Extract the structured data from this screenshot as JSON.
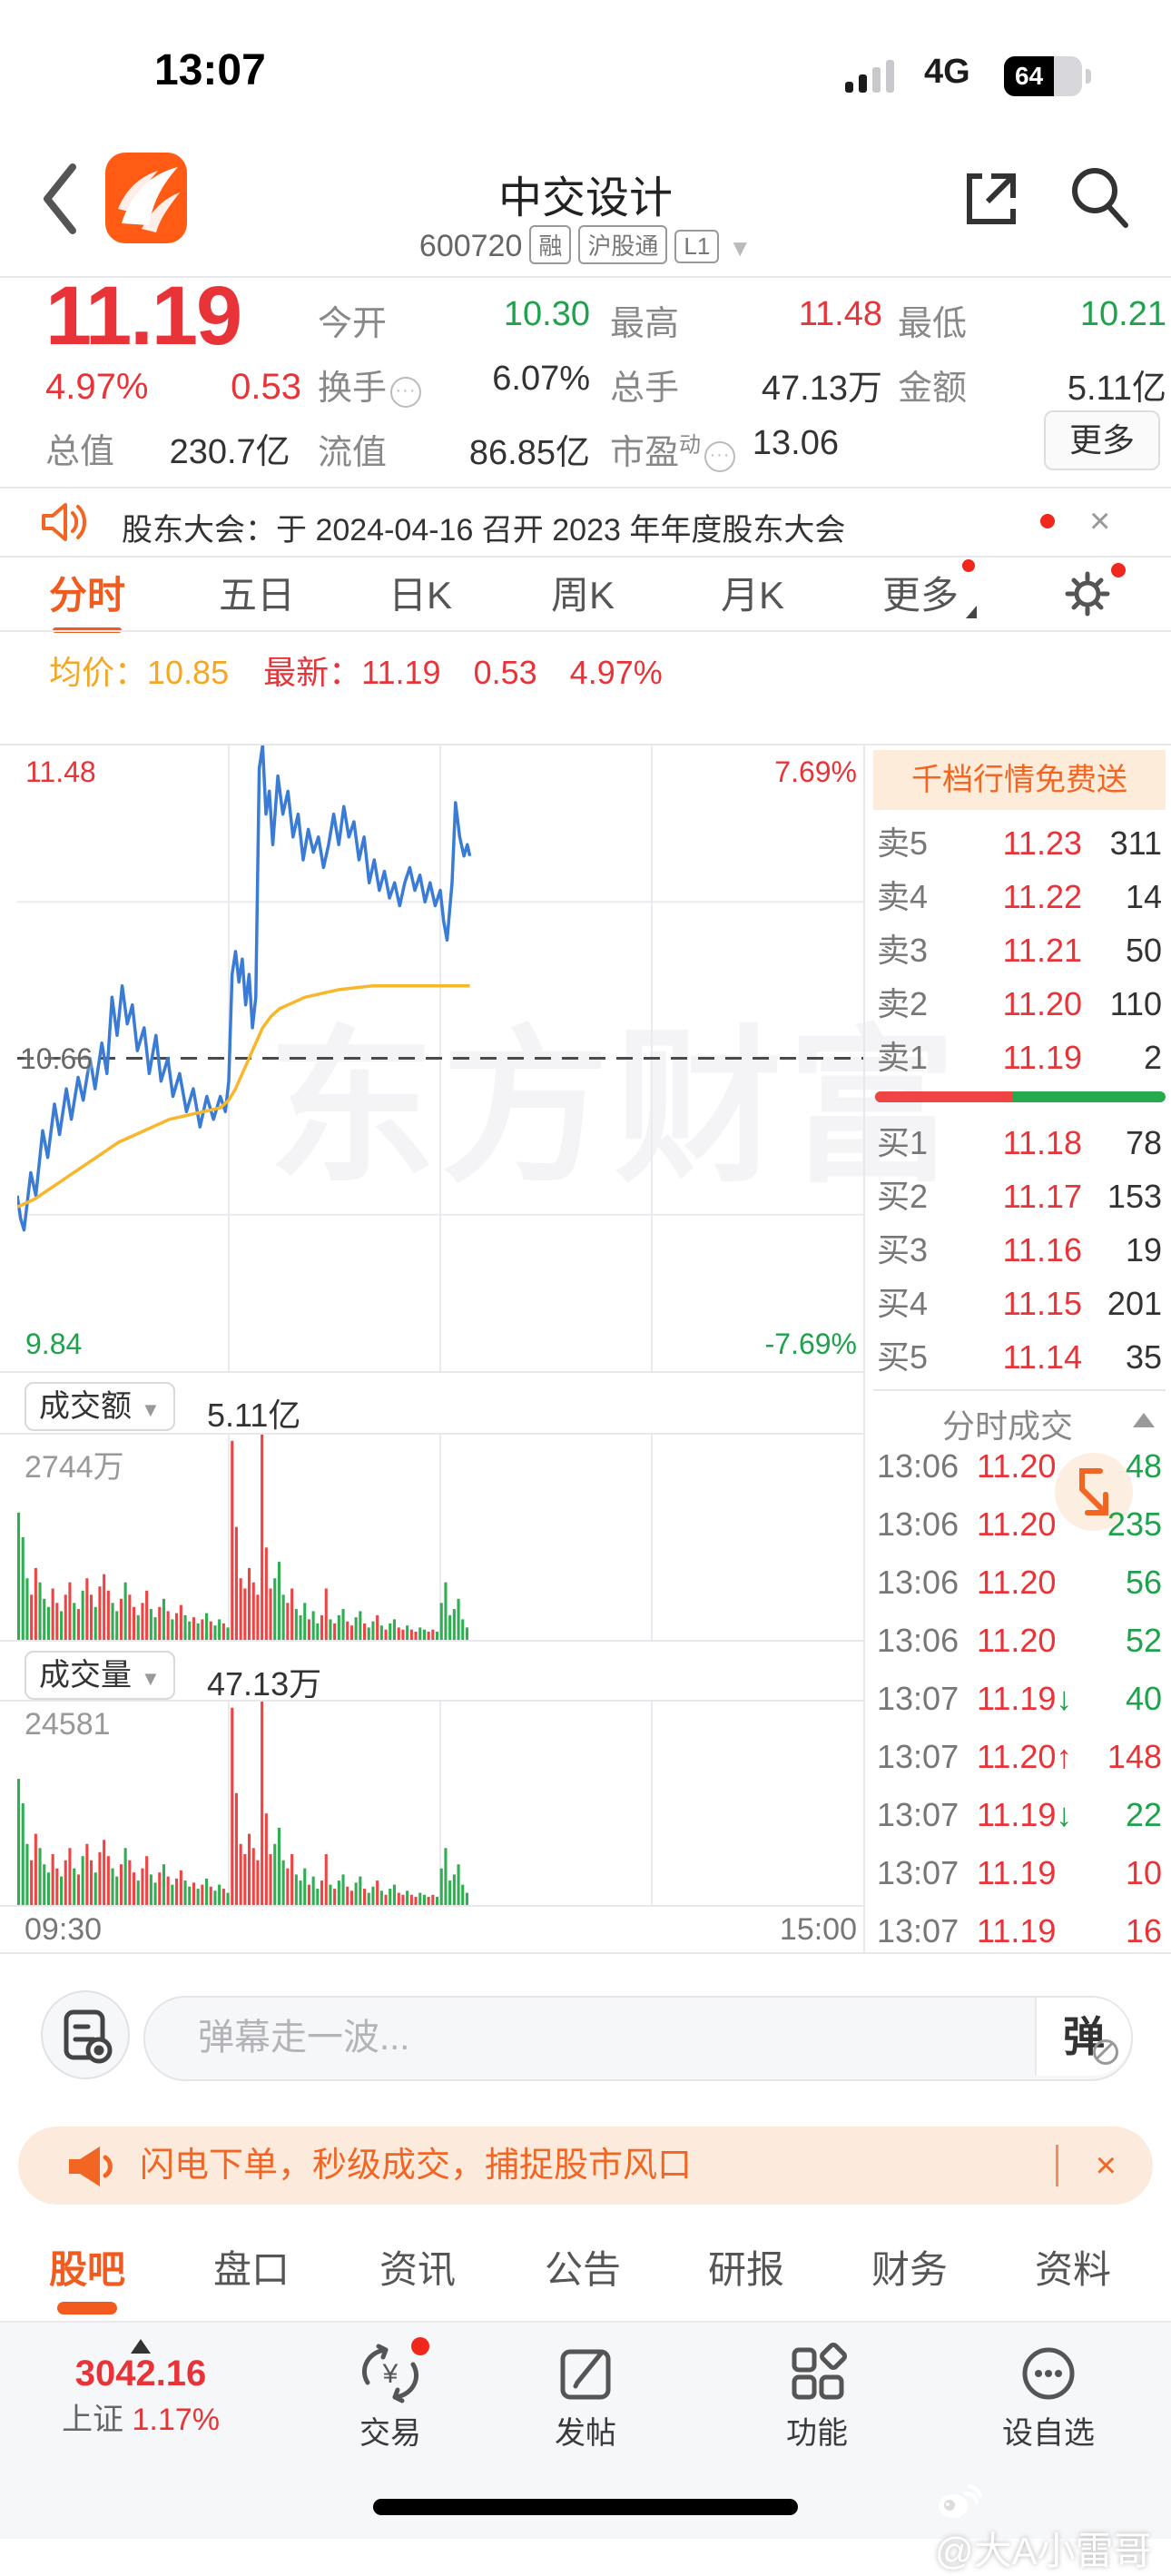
{
  "status_bar": {
    "time": "13:07",
    "network": "4G",
    "battery": "64"
  },
  "header": {
    "title": "中交设计",
    "code": "600720",
    "badges": [
      "融",
      "沪股通",
      "L1"
    ]
  },
  "quote": {
    "price": "11.19",
    "pct": "4.97%",
    "chg": "0.53",
    "cap_label": "总值",
    "cap_value": "230.7亿",
    "r1": [
      {
        "label": "今开",
        "value": "10.30"
      },
      {
        "label": "最高",
        "value": "11.48"
      },
      {
        "label": "最低",
        "value": "10.21"
      }
    ],
    "r2": [
      {
        "label": "换手",
        "value": "6.07%"
      },
      {
        "label": "总手",
        "value": "47.13万"
      },
      {
        "label": "金额",
        "value": "5.11亿"
      }
    ],
    "r3": [
      {
        "label": "流值",
        "value": "86.85亿"
      },
      {
        "label": "市盈",
        "sup": "动",
        "value": "13.06"
      }
    ],
    "more_label": "更多"
  },
  "announcement": {
    "text": "股东大会：于 2024-04-16 召开 2023 年年度股东大会",
    "close": "×"
  },
  "period_tabs": {
    "items": [
      {
        "label": "分时",
        "active": true
      },
      {
        "label": "五日"
      },
      {
        "label": "日K"
      },
      {
        "label": "周K"
      },
      {
        "label": "月K"
      },
      {
        "label": "更多",
        "dot": true,
        "caret": true
      }
    ]
  },
  "chart_header": {
    "avg_label": "均价：",
    "avg": "10.85",
    "latest_label": "最新：",
    "latest": "11.19",
    "chg": "0.53",
    "pct": "4.97%"
  },
  "chart_data": {
    "type": "line",
    "title": "intraday minute chart",
    "ylim": [
      9.84,
      11.48
    ],
    "prev_close": 10.66,
    "labels": {
      "high": "11.48",
      "low": "9.84",
      "prev_close": "10.66",
      "pct_high": "7.69%",
      "pct_low": "-7.69%"
    },
    "x_axis": {
      "start": "09:30",
      "end": "15:00"
    },
    "grid": {
      "v_pct": [
        25,
        50,
        75
      ],
      "h_pct": [
        25,
        75
      ],
      "dashed_pct": 50
    },
    "series": [
      {
        "name": "price",
        "color": "#3a7bd5",
        "points": [
          [
            0,
            10.3
          ],
          [
            0.4,
            10.24
          ],
          [
            0.8,
            10.21
          ],
          [
            1.6,
            10.36
          ],
          [
            2.2,
            10.3
          ],
          [
            3,
            10.47
          ],
          [
            3.6,
            10.4
          ],
          [
            4.4,
            10.54
          ],
          [
            5,
            10.46
          ],
          [
            5.8,
            10.58
          ],
          [
            6.4,
            10.5
          ],
          [
            7.2,
            10.61
          ],
          [
            7.8,
            10.55
          ],
          [
            8.6,
            10.66
          ],
          [
            9.2,
            10.58
          ],
          [
            10,
            10.7
          ],
          [
            10.6,
            10.62
          ],
          [
            11.2,
            10.82
          ],
          [
            11.8,
            10.72
          ],
          [
            12.4,
            10.85
          ],
          [
            13,
            10.75
          ],
          [
            13.6,
            10.8
          ],
          [
            14.2,
            10.68
          ],
          [
            15,
            10.74
          ],
          [
            15.6,
            10.62
          ],
          [
            16.4,
            10.72
          ],
          [
            17,
            10.6
          ],
          [
            17.8,
            10.66
          ],
          [
            18.4,
            10.56
          ],
          [
            19.2,
            10.62
          ],
          [
            20,
            10.52
          ],
          [
            20.8,
            10.58
          ],
          [
            21.6,
            10.48
          ],
          [
            22.4,
            10.56
          ],
          [
            23.2,
            10.5
          ],
          [
            24,
            10.56
          ],
          [
            24.6,
            10.52
          ],
          [
            25,
            10.6
          ],
          [
            25.4,
            10.88
          ],
          [
            25.8,
            10.94
          ],
          [
            26.2,
            10.86
          ],
          [
            26.6,
            10.92
          ],
          [
            27,
            10.8
          ],
          [
            27.4,
            10.88
          ],
          [
            27.8,
            10.74
          ],
          [
            28.2,
            10.82
          ],
          [
            28.6,
            11.42
          ],
          [
            29,
            11.48
          ],
          [
            29.4,
            11.3
          ],
          [
            29.8,
            11.36
          ],
          [
            30.2,
            11.22
          ],
          [
            30.8,
            11.4
          ],
          [
            31.4,
            11.3
          ],
          [
            32,
            11.36
          ],
          [
            32.6,
            11.24
          ],
          [
            33.2,
            11.3
          ],
          [
            33.8,
            11.18
          ],
          [
            34.4,
            11.26
          ],
          [
            35,
            11.2
          ],
          [
            35.6,
            11.24
          ],
          [
            36.2,
            11.16
          ],
          [
            36.8,
            11.22
          ],
          [
            37.4,
            11.3
          ],
          [
            38,
            11.22
          ],
          [
            38.6,
            11.32
          ],
          [
            39.2,
            11.24
          ],
          [
            39.8,
            11.28
          ],
          [
            40.4,
            11.18
          ],
          [
            41,
            11.24
          ],
          [
            41.6,
            11.12
          ],
          [
            42.2,
            11.18
          ],
          [
            42.8,
            11.1
          ],
          [
            43.4,
            11.15
          ],
          [
            44,
            11.08
          ],
          [
            44.6,
            11.12
          ],
          [
            45.2,
            11.06
          ],
          [
            45.8,
            11.12
          ],
          [
            46.4,
            11.16
          ],
          [
            47,
            11.1
          ],
          [
            47.6,
            11.14
          ],
          [
            48.2,
            11.07
          ],
          [
            48.8,
            11.12
          ],
          [
            49.4,
            11.06
          ],
          [
            50,
            11.1
          ],
          [
            50.4,
            11.02
          ],
          [
            50.8,
            10.97
          ],
          [
            51.4,
            11.12
          ],
          [
            51.8,
            11.33
          ],
          [
            52.3,
            11.24
          ],
          [
            52.8,
            11.19
          ],
          [
            53.2,
            11.22
          ],
          [
            53.5,
            11.19
          ]
        ]
      },
      {
        "name": "average",
        "color": "#f8b62b",
        "points": [
          [
            0,
            10.27
          ],
          [
            2,
            10.29
          ],
          [
            4,
            10.32
          ],
          [
            6,
            10.35
          ],
          [
            8,
            10.38
          ],
          [
            10,
            10.41
          ],
          [
            12,
            10.44
          ],
          [
            14,
            10.46
          ],
          [
            16,
            10.48
          ],
          [
            18,
            10.5
          ],
          [
            20,
            10.51
          ],
          [
            22,
            10.52
          ],
          [
            24,
            10.53
          ],
          [
            25,
            10.55
          ],
          [
            25.8,
            10.58
          ],
          [
            26.6,
            10.62
          ],
          [
            27.4,
            10.66
          ],
          [
            28.2,
            10.7
          ],
          [
            29,
            10.74
          ],
          [
            30,
            10.77
          ],
          [
            31,
            10.79
          ],
          [
            32,
            10.8
          ],
          [
            34,
            10.82
          ],
          [
            36,
            10.83
          ],
          [
            38,
            10.84
          ],
          [
            42,
            10.85
          ],
          [
            46,
            10.85
          ],
          [
            50,
            10.85
          ],
          [
            53.5,
            10.85
          ]
        ]
      }
    ],
    "volume_bars": [
      [
        62,
        "g"
      ],
      [
        50,
        "g"
      ],
      [
        30,
        "g"
      ],
      [
        22,
        "r"
      ],
      [
        35,
        "r"
      ],
      [
        28,
        "g"
      ],
      [
        20,
        "g"
      ],
      [
        16,
        "g"
      ],
      [
        25,
        "r"
      ],
      [
        18,
        "r"
      ],
      [
        14,
        "g"
      ],
      [
        22,
        "r"
      ],
      [
        28,
        "r"
      ],
      [
        18,
        "g"
      ],
      [
        15,
        "r"
      ],
      [
        24,
        "g"
      ],
      [
        30,
        "r"
      ],
      [
        22,
        "r"
      ],
      [
        16,
        "g"
      ],
      [
        26,
        "r"
      ],
      [
        32,
        "r"
      ],
      [
        24,
        "r"
      ],
      [
        18,
        "g"
      ],
      [
        14,
        "g"
      ],
      [
        20,
        "r"
      ],
      [
        28,
        "g"
      ],
      [
        22,
        "r"
      ],
      [
        16,
        "r"
      ],
      [
        12,
        "g"
      ],
      [
        18,
        "r"
      ],
      [
        24,
        "r"
      ],
      [
        15,
        "g"
      ],
      [
        11,
        "g"
      ],
      [
        16,
        "r"
      ],
      [
        20,
        "g"
      ],
      [
        14,
        "r"
      ],
      [
        10,
        "g"
      ],
      [
        13,
        "r"
      ],
      [
        17,
        "r"
      ],
      [
        12,
        "g"
      ],
      [
        9,
        "g"
      ],
      [
        11,
        "r"
      ],
      [
        8,
        "g"
      ],
      [
        10,
        "r"
      ],
      [
        13,
        "g"
      ],
      [
        9,
        "r"
      ],
      [
        7,
        "g"
      ],
      [
        10,
        "g"
      ],
      [
        8,
        "r"
      ],
      [
        6,
        "g"
      ],
      [
        97,
        "r"
      ],
      [
        55,
        "r"
      ],
      [
        30,
        "r"
      ],
      [
        25,
        "r"
      ],
      [
        35,
        "r"
      ],
      [
        28,
        "r"
      ],
      [
        22,
        "r"
      ],
      [
        100,
        "r"
      ],
      [
        45,
        "r"
      ],
      [
        25,
        "r"
      ],
      [
        30,
        "g"
      ],
      [
        38,
        "g"
      ],
      [
        22,
        "g"
      ],
      [
        18,
        "r"
      ],
      [
        25,
        "r"
      ],
      [
        15,
        "g"
      ],
      [
        12,
        "g"
      ],
      [
        18,
        "g"
      ],
      [
        10,
        "r"
      ],
      [
        14,
        "g"
      ],
      [
        8,
        "g"
      ],
      [
        12,
        "r"
      ],
      [
        25,
        "r"
      ],
      [
        10,
        "g"
      ],
      [
        8,
        "r"
      ],
      [
        12,
        "g"
      ],
      [
        15,
        "g"
      ],
      [
        9,
        "r"
      ],
      [
        7,
        "r"
      ],
      [
        11,
        "g"
      ],
      [
        14,
        "g"
      ],
      [
        8,
        "r"
      ],
      [
        6,
        "g"
      ],
      [
        9,
        "g"
      ],
      [
        12,
        "r"
      ],
      [
        7,
        "g"
      ],
      [
        5,
        "r"
      ],
      [
        8,
        "g"
      ],
      [
        10,
        "g"
      ],
      [
        6,
        "r"
      ],
      [
        5,
        "r"
      ],
      [
        7,
        "g"
      ],
      [
        5,
        "r"
      ],
      [
        4,
        "r"
      ],
      [
        6,
        "g"
      ],
      [
        5,
        "g"
      ],
      [
        4,
        "r"
      ],
      [
        5,
        "r"
      ],
      [
        4,
        "g"
      ],
      [
        18,
        "g"
      ],
      [
        28,
        "g"
      ],
      [
        12,
        "g"
      ],
      [
        15,
        "g"
      ],
      [
        20,
        "g"
      ],
      [
        10,
        "g"
      ],
      [
        6,
        "g"
      ]
    ],
    "session_end_pct": 53.5
  },
  "amount_section": {
    "label": "成交额",
    "value": "5.11亿",
    "max_label": "2744万"
  },
  "volume_section": {
    "label": "成交量",
    "value": "47.13万",
    "max_label": "24581"
  },
  "order_book": {
    "banner": "千档行情免费送",
    "asks": [
      {
        "label": "卖5",
        "price": "11.23",
        "vol": "311"
      },
      {
        "label": "卖4",
        "price": "11.22",
        "vol": "14"
      },
      {
        "label": "卖3",
        "price": "11.21",
        "vol": "50"
      },
      {
        "label": "卖2",
        "price": "11.20",
        "vol": "110"
      },
      {
        "label": "卖1",
        "price": "11.19",
        "vol": "2"
      }
    ],
    "bids": [
      {
        "label": "买1",
        "price": "11.18",
        "vol": "78"
      },
      {
        "label": "买2",
        "price": "11.17",
        "vol": "153"
      },
      {
        "label": "买3",
        "price": "11.16",
        "vol": "19"
      },
      {
        "label": "买4",
        "price": "11.15",
        "vol": "201"
      },
      {
        "label": "买5",
        "price": "11.14",
        "vol": "35"
      }
    ],
    "ratio_red_pct": 47.5
  },
  "ticks": {
    "title": "分时成交",
    "rows": [
      {
        "time": "13:06",
        "price": "11.20",
        "arrow": "",
        "ac": "",
        "vol": "48",
        "vc": "g"
      },
      {
        "time": "13:06",
        "price": "11.20",
        "arrow": "",
        "ac": "",
        "vol": "235",
        "vc": "g"
      },
      {
        "time": "13:06",
        "price": "11.20",
        "arrow": "",
        "ac": "",
        "vol": "56",
        "vc": "g"
      },
      {
        "time": "13:06",
        "price": "11.20",
        "arrow": "",
        "ac": "",
        "vol": "52",
        "vc": "g"
      },
      {
        "time": "13:07",
        "price": "11.19",
        "arrow": "↓",
        "ac": "g",
        "vol": "40",
        "vc": "g"
      },
      {
        "time": "13:07",
        "price": "11.20",
        "arrow": "↑",
        "ac": "r",
        "vol": "148",
        "vc": "r"
      },
      {
        "time": "13:07",
        "price": "11.19",
        "arrow": "↓",
        "ac": "g",
        "vol": "22",
        "vc": "g"
      },
      {
        "time": "13:07",
        "price": "11.19",
        "arrow": "",
        "ac": "",
        "vol": "10",
        "vc": "r"
      },
      {
        "time": "13:07",
        "price": "11.19",
        "arrow": "",
        "ac": "",
        "vol": "16",
        "vc": "r"
      }
    ]
  },
  "comment_bar": {
    "placeholder": "弹幕走一波...",
    "send": "弹"
  },
  "promo": {
    "text": "闪电下单，秒级成交，捕捉股市风口",
    "close": "×"
  },
  "sub_tabs": {
    "items": [
      {
        "label": "股吧",
        "active": true
      },
      {
        "label": "盘口"
      },
      {
        "label": "资讯"
      },
      {
        "label": "公告"
      },
      {
        "label": "研报"
      },
      {
        "label": "财务"
      },
      {
        "label": "资料"
      }
    ]
  },
  "bottom_nav": {
    "index_value": "3042.16",
    "index_name": "上证",
    "index_pct": "1.17%",
    "items": [
      "交易",
      "发帖",
      "功能",
      "设自选"
    ]
  },
  "chart_watermark": "东方财富",
  "photo_watermark": "@大A小雷哥"
}
